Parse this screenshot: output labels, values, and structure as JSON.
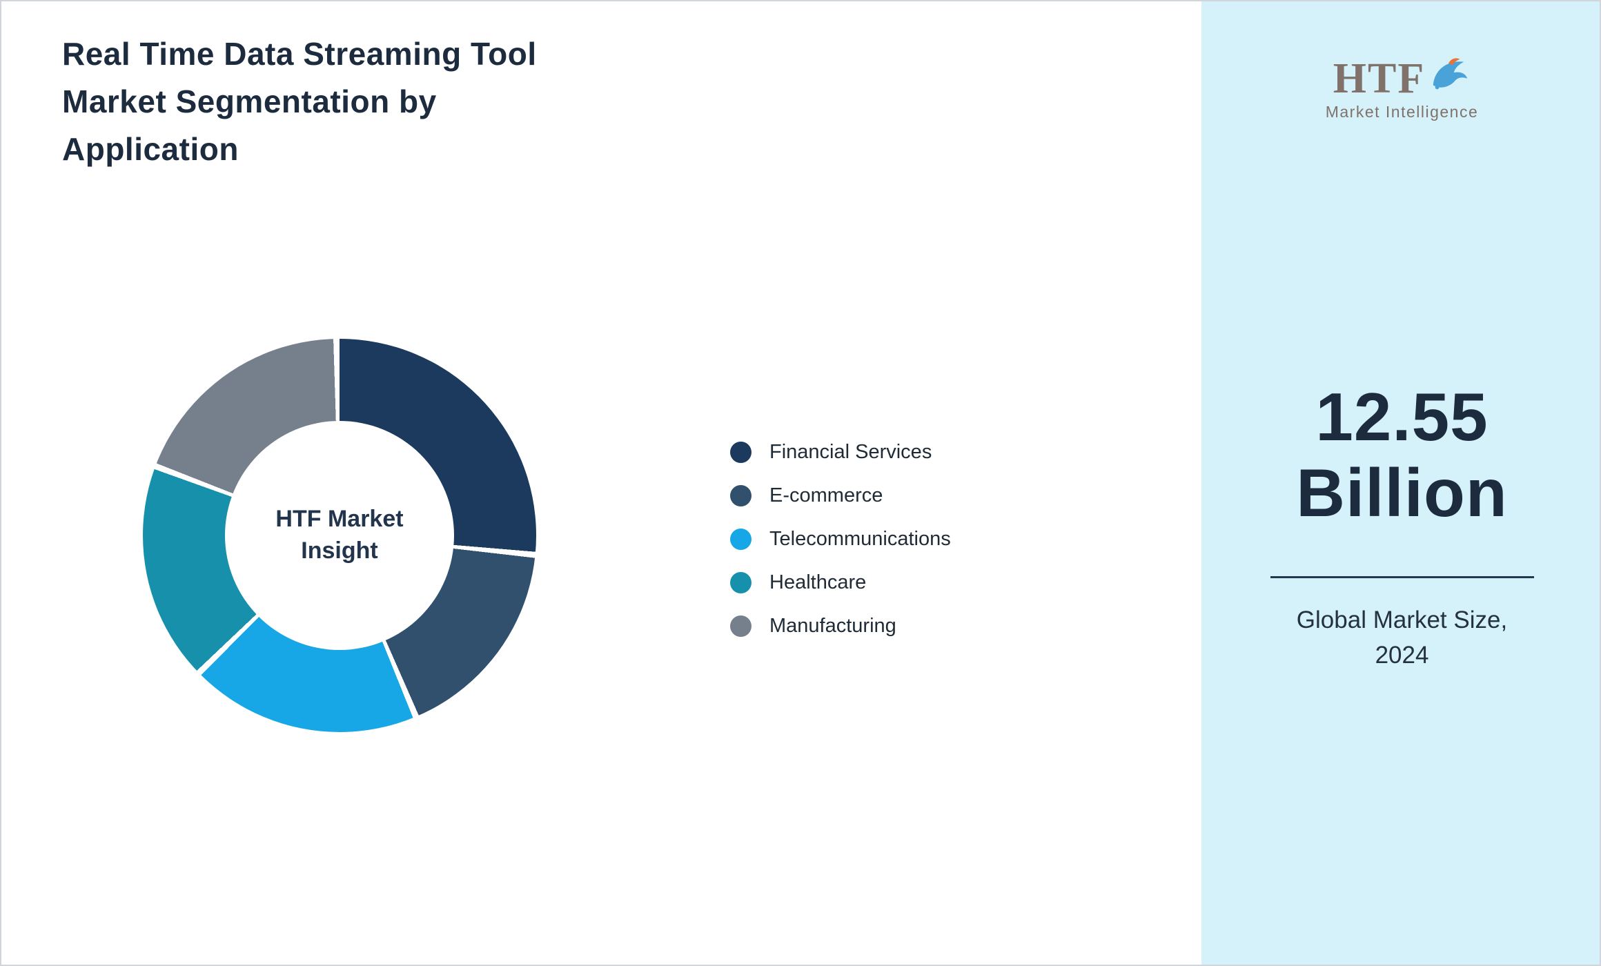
{
  "title": "Real Time Data Streaming Tool\nMarket Segmentation by\nApplication",
  "chart_data": {
    "type": "pie",
    "donut": true,
    "title": "Real Time Data Streaming Tool Market Segmentation by Application",
    "center_label": "HTF Market\nInsight",
    "categories": [
      "Financial Services",
      "E-commerce",
      "Telecommunications",
      "Healthcare",
      "Manufacturing"
    ],
    "values": [
      27,
      17,
      19,
      18,
      19
    ],
    "values_note": "estimated percent share from segment angles; no numeric labels shown",
    "colors": [
      "#1b3a5e",
      "#31506e",
      "#18a7e6",
      "#1791ab",
      "#76808c"
    ],
    "legend_position": "right",
    "legend": [
      {
        "label": "Financial Services",
        "color": "#1b3a5e"
      },
      {
        "label": "E-commerce",
        "color": "#31506e"
      },
      {
        "label": "Telecommunications",
        "color": "#18a7e6"
      },
      {
        "label": "Healthcare",
        "color": "#1791ab"
      },
      {
        "label": "Manufacturing",
        "color": "#76808c"
      }
    ]
  },
  "sidebar": {
    "background": "#d5f2fb",
    "logo": {
      "text": "HTF",
      "subtext": "Market Intelligence",
      "icon": "dolphin-icon"
    },
    "market_size_value": "12.55\nBillion",
    "market_size_label": "Global Market Size,\n2024"
  }
}
